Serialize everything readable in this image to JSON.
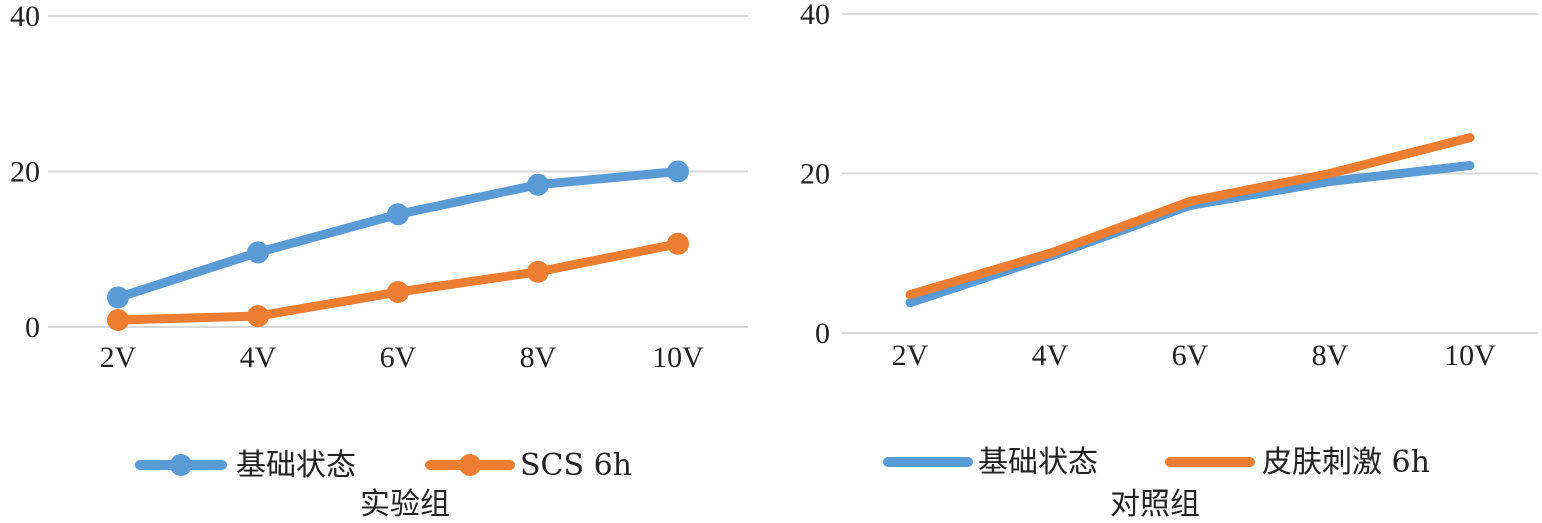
{
  "chart_data": [
    {
      "type": "line",
      "title": "实验组",
      "markers": true,
      "categories": [
        "2V",
        "4V",
        "6V",
        "8V",
        "10V"
      ],
      "yticks": [
        "0",
        "20",
        "40"
      ],
      "ylim": [
        0,
        40
      ],
      "grid": true,
      "legend_position": "bottom",
      "series": [
        {
          "name": "基础状态",
          "color": "#5B9BD5",
          "values": [
            3.8,
            9.6,
            14.5,
            18.3,
            20.0
          ]
        },
        {
          "name": "SCS 6h",
          "color": "#ED7D31",
          "values": [
            0.9,
            1.4,
            4.5,
            7.1,
            10.7
          ]
        }
      ]
    },
    {
      "type": "line",
      "title": "对照组",
      "markers": false,
      "categories": [
        "2V",
        "4V",
        "6V",
        "8V",
        "10V"
      ],
      "yticks": [
        "0",
        "20",
        "40"
      ],
      "ylim": [
        0,
        40
      ],
      "grid": true,
      "legend_position": "bottom",
      "series": [
        {
          "name": "基础状态",
          "color": "#5B9BD5",
          "values": [
            3.8,
            9.6,
            16.0,
            19.0,
            21.0
          ]
        },
        {
          "name": "皮肤刺激 6h",
          "color": "#ED7D31",
          "values": [
            4.8,
            10.0,
            16.5,
            20.0,
            24.5
          ]
        }
      ]
    }
  ]
}
